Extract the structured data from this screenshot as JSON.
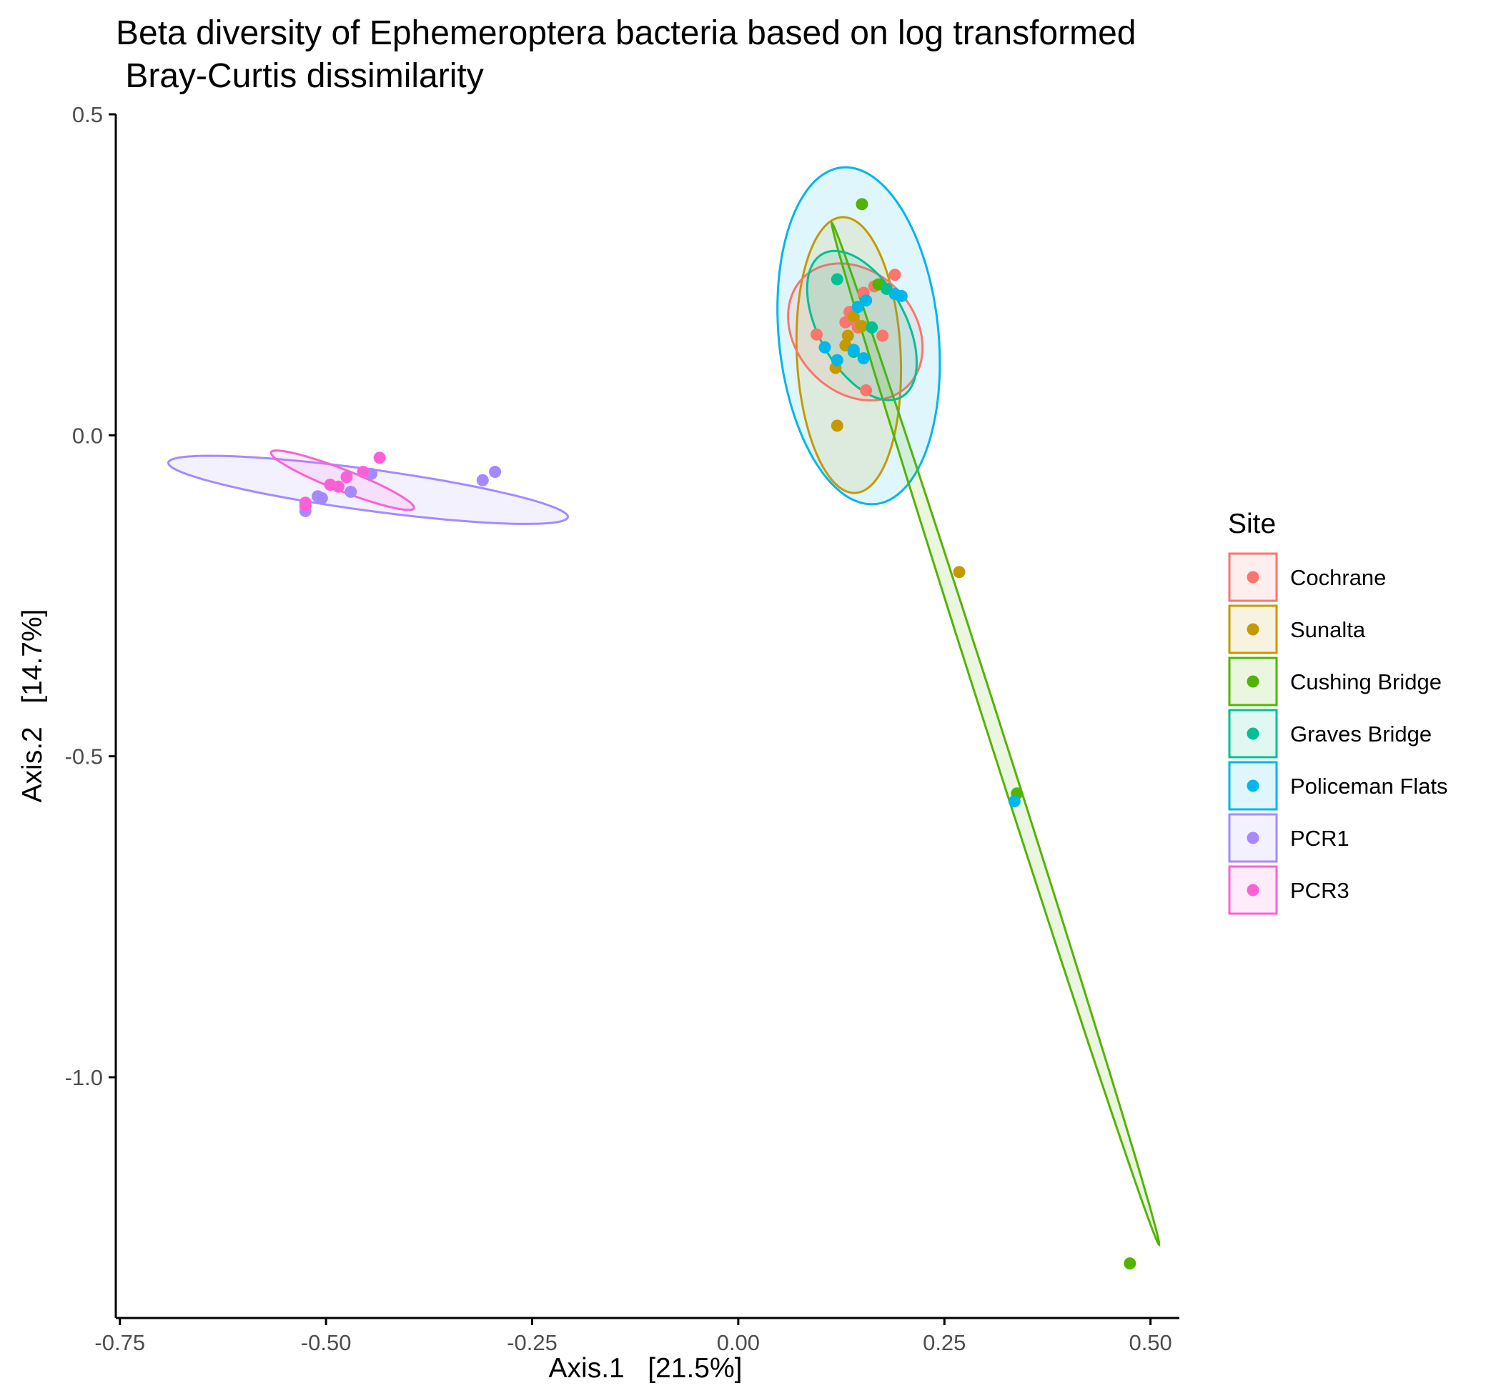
{
  "chart_data": {
    "type": "scatter",
    "title_lines": [
      "Beta diversity of Ephemeroptera bacteria based on log transformed",
      " Bray-Curtis dissimilarity"
    ],
    "xlabel": "Axis.1   [21.5%]",
    "ylabel": "Axis.2   [14.7%]",
    "xlim": [
      -0.755,
      0.535
    ],
    "ylim": [
      -1.375,
      0.5
    ],
    "x_ticks": [
      -0.75,
      -0.5,
      -0.25,
      0.0,
      0.25,
      0.5
    ],
    "x_tick_labels": [
      "-0.75",
      "-0.50",
      "-0.25",
      "0.00",
      "0.25",
      "0.50"
    ],
    "y_ticks": [
      0.5,
      0.0,
      -0.5,
      -1.0
    ],
    "y_tick_labels": [
      "0.5",
      "0.0",
      "-0.5",
      "-1.0"
    ],
    "grid": false,
    "legend": {
      "title": "Site",
      "position": "right"
    },
    "series": [
      {
        "name": "Cochrane",
        "color": "#F8766D",
        "points": [
          [
            0.095,
            0.157
          ],
          [
            0.13,
            0.176
          ],
          [
            0.135,
            0.192
          ],
          [
            0.152,
            0.222
          ],
          [
            0.165,
            0.232
          ],
          [
            0.19,
            0.25
          ],
          [
            0.175,
            0.155
          ],
          [
            0.155,
            0.07
          ],
          [
            0.14,
            0.18
          ],
          [
            0.145,
            0.168
          ]
        ],
        "ellipse": {
          "cx": 0.142,
          "cy": 0.161,
          "rx": 0.077,
          "ry": 0.11,
          "angle": 20
        }
      },
      {
        "name": "Sunalta",
        "color": "#C49A00",
        "points": [
          [
            0.12,
            0.015
          ],
          [
            0.118,
            0.105
          ],
          [
            0.133,
            0.155
          ],
          [
            0.14,
            0.185
          ],
          [
            0.15,
            0.17
          ],
          [
            0.13,
            0.14
          ],
          [
            0.268,
            -0.213
          ]
        ],
        "ellipse": {
          "cx": 0.134,
          "cy": 0.125,
          "rx": 0.063,
          "ry": 0.215,
          "angle": 2
        }
      },
      {
        "name": "Cushing Bridge",
        "color": "#53B400",
        "points": [
          [
            0.17,
            0.235
          ],
          [
            0.338,
            -0.558
          ],
          [
            0.15,
            0.36
          ],
          [
            0.475,
            -1.29
          ]
        ],
        "ellipse": {
          "cx": 0.312,
          "cy": -0.465,
          "rx": 0.82,
          "ry": 0.009,
          "angle": -76.0
        }
      },
      {
        "name": "Graves Bridge",
        "color": "#00C094",
        "points": [
          [
            0.12,
            0.243
          ],
          [
            0.162,
            0.168
          ],
          [
            0.18,
            0.228
          ],
          [
            0.14,
            0.13
          ]
        ],
        "ellipse": {
          "cx": 0.15,
          "cy": 0.171,
          "rx": 0.055,
          "ry": 0.122,
          "angle": 20
        }
      },
      {
        "name": "Policeman Flats",
        "color": "#00B6EB",
        "points": [
          [
            0.105,
            0.137
          ],
          [
            0.12,
            0.117
          ],
          [
            0.14,
            0.133
          ],
          [
            0.152,
            0.12
          ],
          [
            0.145,
            0.2
          ],
          [
            0.155,
            0.21
          ],
          [
            0.19,
            0.22
          ],
          [
            0.198,
            0.217
          ],
          [
            0.335,
            -0.57
          ]
        ],
        "ellipse": {
          "cx": 0.146,
          "cy": 0.155,
          "rx": 0.097,
          "ry": 0.263,
          "angle": 4
        }
      },
      {
        "name": "PCR1",
        "color": "#A58AFF",
        "points": [
          [
            -0.525,
            -0.118
          ],
          [
            -0.51,
            -0.095
          ],
          [
            -0.47,
            -0.088
          ],
          [
            -0.445,
            -0.06
          ],
          [
            -0.31,
            -0.07
          ],
          [
            -0.295,
            -0.057
          ],
          [
            -0.505,
            -0.098
          ]
        ],
        "ellipse": {
          "cx": -0.449,
          "cy": -0.085,
          "rx": 0.246,
          "ry": 0.032,
          "angle": -10
        }
      },
      {
        "name": "PCR3",
        "color": "#FB61D7",
        "points": [
          [
            -0.525,
            -0.105
          ],
          [
            -0.495,
            -0.077
          ],
          [
            -0.485,
            -0.08
          ],
          [
            -0.475,
            -0.065
          ],
          [
            -0.455,
            -0.057
          ],
          [
            -0.435,
            -0.035
          ],
          [
            -0.525,
            -0.11
          ]
        ],
        "ellipse": {
          "cx": -0.48,
          "cy": -0.07,
          "rx": 0.097,
          "ry": 0.016,
          "angle": -27
        }
      }
    ]
  }
}
